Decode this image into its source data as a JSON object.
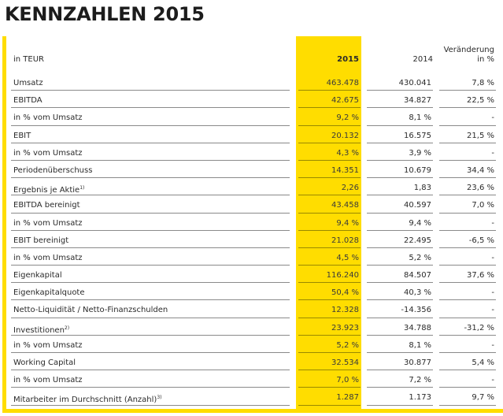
{
  "title": "KENNZAHLEN 2015",
  "colors": {
    "highlight": "#ffdd00"
  },
  "header": {
    "unit": "in TEUR",
    "col_2015": "2015",
    "col_2014": "2014",
    "col_change_line1": "Veränderung",
    "col_change_line2": "in %"
  },
  "rows": [
    {
      "label": "Umsatz",
      "sup": "",
      "v2015": "463.478",
      "v2014": "430.041",
      "change": "7,8 %"
    },
    {
      "label": "EBITDA",
      "sup": "",
      "v2015": "42.675",
      "v2014": "34.827",
      "change": "22,5 %"
    },
    {
      "label": "in % vom Umsatz",
      "sup": "",
      "v2015": "9,2 %",
      "v2014": "8,1 %",
      "change": "-"
    },
    {
      "label": "EBIT",
      "sup": "",
      "v2015": "20.132",
      "v2014": "16.575",
      "change": "21,5 %"
    },
    {
      "label": "in % vom Umsatz",
      "sup": "",
      "v2015": "4,3 %",
      "v2014": "3,9 %",
      "change": "-"
    },
    {
      "label": "Periodenüberschuss",
      "sup": "",
      "v2015": "14.351",
      "v2014": "10.679",
      "change": "34,4 %"
    },
    {
      "label": "Ergebnis je Aktie",
      "sup": "1)",
      "v2015": "2,26",
      "v2014": "1,83",
      "change": "23,6 %"
    },
    {
      "label": "EBITDA bereinigt",
      "sup": "",
      "v2015": "43.458",
      "v2014": "40.597",
      "change": "7,0 %"
    },
    {
      "label": "in % vom Umsatz",
      "sup": "",
      "v2015": "9,4 %",
      "v2014": "9,4 %",
      "change": "-"
    },
    {
      "label": "EBIT bereinigt",
      "sup": "",
      "v2015": "21.028",
      "v2014": "22.495",
      "change": "-6,5 %"
    },
    {
      "label": "in % vom Umsatz",
      "sup": "",
      "v2015": "4,5 %",
      "v2014": "5,2 %",
      "change": "-"
    },
    {
      "label": "Eigenkapital",
      "sup": "",
      "v2015": "116.240",
      "v2014": "84.507",
      "change": "37,6 %"
    },
    {
      "label": "Eigenkapitalquote",
      "sup": "",
      "v2015": "50,4 %",
      "v2014": "40,3 %",
      "change": "-"
    },
    {
      "label": "Netto-Liquidität / Netto-Finanzschulden",
      "sup": "",
      "v2015": "12.328",
      "v2014": "-14.356",
      "change": "-"
    },
    {
      "label": "Investitionen",
      "sup": "2)",
      "v2015": "23.923",
      "v2014": "34.788",
      "change": "-31,2 %"
    },
    {
      "label": "in % vom Umsatz",
      "sup": "",
      "v2015": "5,2 %",
      "v2014": "8,1 %",
      "change": "-"
    },
    {
      "label": "Working Capital",
      "sup": "",
      "v2015": "32.534",
      "v2014": "30.877",
      "change": "5,4 %"
    },
    {
      "label": "in % vom Umsatz",
      "sup": "",
      "v2015": "7,0 %",
      "v2014": "7,2 %",
      "change": "-"
    },
    {
      "label": "Mitarbeiter im Durchschnitt (Anzahl)",
      "sup": "3)",
      "v2015": "1.287",
      "v2014": "1.173",
      "change": "9,7 %"
    }
  ]
}
